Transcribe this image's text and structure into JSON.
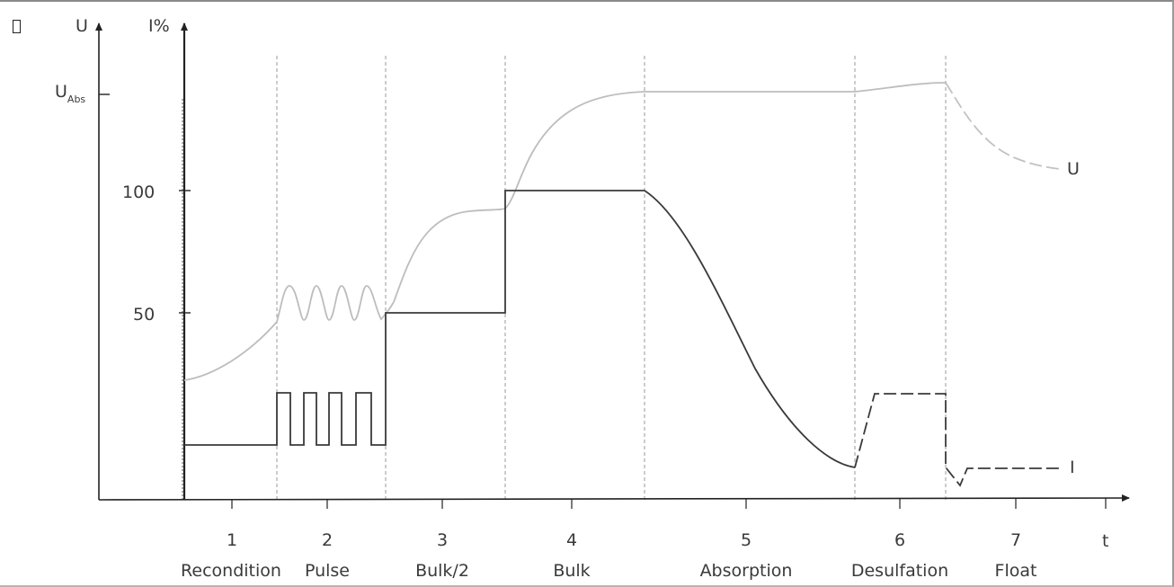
{
  "axes": {
    "voltage_axis_label": "U",
    "current_axis_label": "I%",
    "voltage_abs_main": "U",
    "voltage_abs_sub": "Abs",
    "tick_100": "100",
    "tick_50": "50",
    "time_axis_label": "t"
  },
  "curves": {
    "voltage_label": "U",
    "current_label": "I",
    "voltage_color": "#bdbdbd",
    "current_color": "#3a3a3a",
    "grid_color": "#9a9a9a"
  },
  "stages": [
    {
      "number": "1",
      "name": "Recondition"
    },
    {
      "number": "2",
      "name": "Pulse"
    },
    {
      "number": "3",
      "name": "Bulk/2"
    },
    {
      "number": "4",
      "name": "Bulk"
    },
    {
      "number": "5",
      "name": "Absorption"
    },
    {
      "number": "6",
      "name": "Desulfation"
    },
    {
      "number": "7",
      "name": "Float"
    }
  ]
}
